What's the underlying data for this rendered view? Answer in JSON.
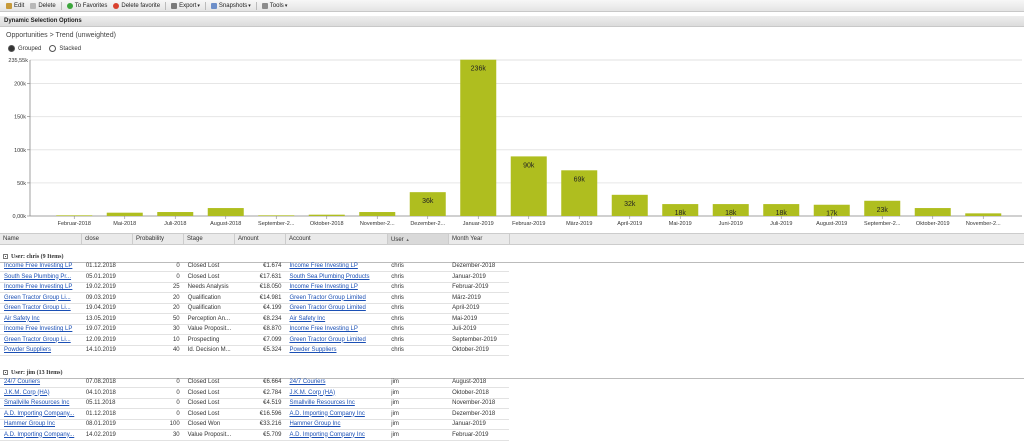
{
  "toolbar": {
    "items": [
      {
        "label": "Edit",
        "icon": "edit-icon",
        "color": "#c79a3a"
      },
      {
        "label": "Delete",
        "icon": "delete-icon",
        "color": "#b8b8b8"
      },
      {
        "label": "To Favorites",
        "icon": "add-favorite-icon",
        "color": "#3da63d"
      },
      {
        "label": "Delete favorite",
        "icon": "remove-favorite-icon",
        "color": "#d9412e"
      },
      {
        "label": "Export",
        "icon": "export-icon",
        "color": "#7a7a7a",
        "dropdown": true
      },
      {
        "label": "Snapshots",
        "icon": "snapshot-icon",
        "color": "#6d8fc9",
        "dropdown": true
      },
      {
        "label": "Tools",
        "icon": "tools-icon",
        "color": "#8c8c8c",
        "dropdown": true
      }
    ]
  },
  "panel_title": "Dynamic Selection Options",
  "breadcrumb": "Opportunities > Trend (unweighted)",
  "view_mode": {
    "grouped": "Grouped",
    "stacked": "Stacked",
    "selected": "grouped"
  },
  "chart_data": {
    "type": "bar",
    "bar_color": "#afbe1f",
    "y_max_label": "235,55k",
    "y_ticks": [
      "0,00k",
      "50k",
      "100k",
      "150k",
      "200k"
    ],
    "y_tick_values": [
      0,
      50,
      100,
      150,
      200
    ],
    "ylim": [
      0,
      235.55
    ],
    "categories": [
      "Februar-2018",
      "Mai-2018",
      "Juli-2018",
      "August-2018",
      "September-2...",
      "Oktober-2018",
      "November-2...",
      "Dezember-2...",
      "Januar-2019",
      "Februar-2019",
      "März-2019",
      "April-2019",
      "Mai-2019",
      "Juni-2019",
      "Juli-2019",
      "August-2019",
      "September-2...",
      "Oktober-2019",
      "November-2..."
    ],
    "values": [
      1,
      5,
      6,
      12,
      1,
      2,
      6,
      36,
      236,
      90,
      69,
      32,
      18,
      18,
      18,
      17,
      23,
      12,
      4
    ],
    "labels": [
      "",
      "",
      "",
      "",
      "",
      "",
      "",
      "36k",
      "236k",
      "90k",
      "69k",
      "32k",
      "18k",
      "18k",
      "18k",
      "17k",
      "23k",
      "",
      ""
    ]
  },
  "grid": {
    "columns": [
      "Name",
      "close",
      "Probability",
      "Stage",
      "Amount",
      "Account",
      "User",
      "Month Year"
    ],
    "sort_indicator": "▲",
    "groups": [
      {
        "title": "User: chris (9 Items)",
        "rows": [
          [
            "Income Free Investing LP",
            "01.12.2018",
            "0",
            "Closed Lost",
            "€1.674",
            "Income Free Investing LP",
            "chris",
            "Dezember-2018"
          ],
          [
            "South Sea Plumbing Pr...",
            "05.01.2019",
            "0",
            "Closed Lost",
            "€17.631",
            "South Sea Plumbing Products",
            "chris",
            "Januar-2019"
          ],
          [
            "Income Free Investing LP",
            "19.02.2019",
            "25",
            "Needs Analysis",
            "€18.050",
            "Income Free Investing LP",
            "chris",
            "Februar-2019"
          ],
          [
            "Green Tractor Group Li...",
            "09.03.2019",
            "20",
            "Qualification",
            "€14.981",
            "Green Tractor Group Limited",
            "chris",
            "März-2019"
          ],
          [
            "Green Tractor Group Li...",
            "19.04.2019",
            "20",
            "Qualification",
            "€4.199",
            "Green Tractor Group Limited",
            "chris",
            "April-2019"
          ],
          [
            "Air Safety Inc",
            "13.05.2019",
            "50",
            "Perception An...",
            "€8.234",
            "Air Safety Inc",
            "chris",
            "Mai-2019"
          ],
          [
            "Income Free Investing LP",
            "19.07.2019",
            "30",
            "Value Proposit...",
            "€8.870",
            "Income Free Investing LP",
            "chris",
            "Juli-2019"
          ],
          [
            "Green Tractor Group Li...",
            "12.09.2019",
            "10",
            "Prospecting",
            "€7.099",
            "Green Tractor Group Limited",
            "chris",
            "September-2019"
          ],
          [
            "Powder Suppliers",
            "14.10.2019",
            "40",
            "Id. Decision M...",
            "€5.324",
            "Powder Suppliers",
            "chris",
            "Oktober-2019"
          ]
        ]
      },
      {
        "title": "User: jim (13 Items)",
        "rows": [
          [
            "24/7 Couriers",
            "07.08.2018",
            "0",
            "Closed Lost",
            "€6.664",
            "24/7 Couriers",
            "jim",
            "August-2018"
          ],
          [
            "J.K.M. Corp (HA)",
            "04.10.2018",
            "0",
            "Closed Lost",
            "€2.784",
            "J.K.M. Corp (HA)",
            "jim",
            "Oktober-2018"
          ],
          [
            "Smallville Resources Inc",
            "05.11.2018",
            "0",
            "Closed Lost",
            "€4.519",
            "Smallville Resources Inc",
            "jim",
            "November-2018"
          ],
          [
            "A.D. Importing Company...",
            "01.12.2018",
            "0",
            "Closed Lost",
            "€16.596",
            "A.D. Importing Company Inc",
            "jim",
            "Dezember-2018"
          ],
          [
            "Hammer Group Inc",
            "08.01.2019",
            "100",
            "Closed Won",
            "€33.216",
            "Hammer Group Inc",
            "jim",
            "Januar-2019"
          ],
          [
            "A.D. Importing Company...",
            "14.02.2019",
            "30",
            "Value Proposit...",
            "€5.709",
            "A.D. Importing Company Inc",
            "jim",
            "Februar-2019"
          ]
        ]
      }
    ]
  }
}
